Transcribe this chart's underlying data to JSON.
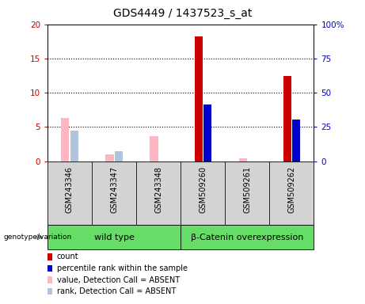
{
  "title": "GDS4449 / 1437523_s_at",
  "samples": [
    "GSM243346",
    "GSM243347",
    "GSM243348",
    "GSM509260",
    "GSM509261",
    "GSM509262"
  ],
  "group_labels": [
    "wild type",
    "β-Catenin overexpression"
  ],
  "count_values": [
    0,
    0,
    0,
    18.2,
    0,
    12.5
  ],
  "percentile_values": [
    0,
    0,
    0,
    41.5,
    0,
    30.5
  ],
  "absent_value_values": [
    6.3,
    1.0,
    3.7,
    0,
    0.4,
    0
  ],
  "absent_rank_values": [
    4.5,
    1.5,
    0,
    0,
    0,
    0
  ],
  "count_color": "#CC0000",
  "percentile_color": "#0000CC",
  "absent_value_color": "#FFB6C1",
  "absent_rank_color": "#B0C4DE",
  "ylim_left": [
    0,
    20
  ],
  "ylim_right": [
    0,
    100
  ],
  "yticks_left": [
    0,
    5,
    10,
    15,
    20
  ],
  "yticks_right": [
    0,
    25,
    50,
    75,
    100
  ],
  "yticklabels_left": [
    "0",
    "5",
    "10",
    "15",
    "20"
  ],
  "yticklabels_right": [
    "0",
    "25",
    "50",
    "75",
    "100%"
  ],
  "bg_color": "#FFFFFF",
  "plot_bg_color": "#FFFFFF",
  "grid_color": "#000000",
  "title_fontsize": 10,
  "tick_fontsize": 7.5,
  "legend_fontsize": 7,
  "sample_label_fontsize": 7,
  "group_fontsize": 8
}
